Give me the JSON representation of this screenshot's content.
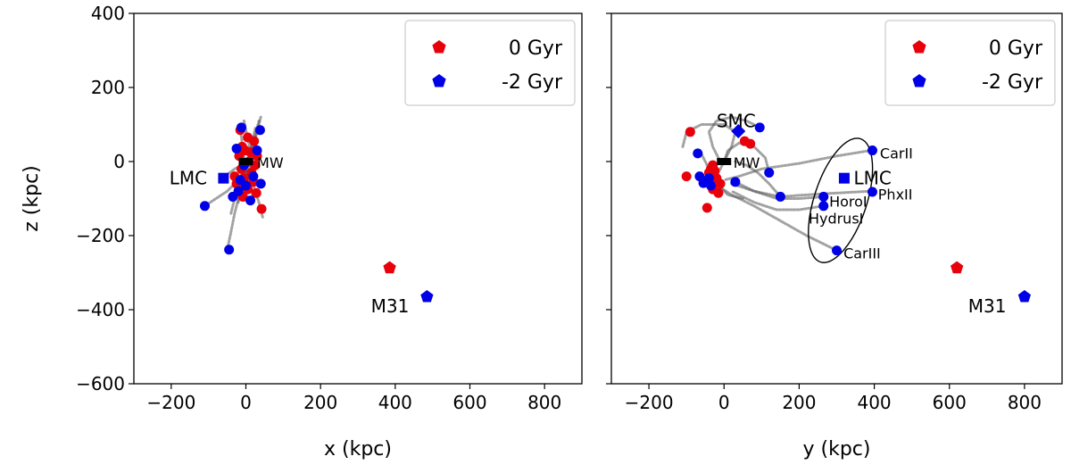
{
  "chart_data": [
    {
      "type": "scatter",
      "xlabel": "x (kpc)",
      "ylabel": "z (kpc)",
      "xlim": [
        -300,
        900
      ],
      "ylim": [
        -600,
        400
      ],
      "xticks": [
        -200,
        0,
        200,
        400,
        600,
        800
      ],
      "yticks": [
        -600,
        -400,
        -200,
        0,
        200,
        400
      ],
      "xtick_labels": [
        "−200",
        "0",
        "200",
        "400",
        "600",
        "800"
      ],
      "ytick_labels": [
        "−600",
        "−400",
        "−200",
        "0",
        "200",
        "400"
      ],
      "legend": {
        "position": "top-right",
        "entries": [
          {
            "label": "0 Gyr",
            "color": "#e8000b",
            "marker": "pentagon"
          },
          {
            "label": "-2 Gyr",
            "color": "#0000e6",
            "marker": "pentagon"
          }
        ]
      },
      "series": [
        {
          "name": "orbits",
          "color": "#555555",
          "style": "dotted-line",
          "paths": [
            [
              [
                -5,
                110
              ],
              [
                5,
                60
              ],
              [
                15,
                20
              ],
              [
                10,
                -20
              ],
              [
                0,
                -60
              ]
            ],
            [
              [
                35,
                110
              ],
              [
                25,
                70
              ],
              [
                20,
                30
              ],
              [
                15,
                -10
              ],
              [
                10,
                -50
              ]
            ],
            [
              [
                -15,
                90
              ],
              [
                -10,
                50
              ],
              [
                -5,
                10
              ],
              [
                0,
                -30
              ],
              [
                5,
                -80
              ]
            ],
            [
              [
                25,
                90
              ],
              [
                15,
                40
              ],
              [
                5,
                0
              ],
              [
                -5,
                -40
              ],
              [
                -15,
                -90
              ]
            ],
            [
              [
                20,
                60
              ],
              [
                10,
                20
              ],
              [
                0,
                -20
              ],
              [
                -10,
                -60
              ],
              [
                -20,
                -110
              ]
            ],
            [
              [
                -20,
                40
              ],
              [
                -10,
                10
              ],
              [
                0,
                -20
              ],
              [
                10,
                -60
              ],
              [
                20,
                -100
              ]
            ],
            [
              [
                -50,
                -238
              ],
              [
                -40,
                -190
              ],
              [
                -30,
                -140
              ],
              [
                -20,
                -100
              ],
              [
                -10,
                -60
              ]
            ],
            [
              [
                -110,
                -120
              ],
              [
                -80,
                -100
              ],
              [
                -50,
                -80
              ],
              [
                -30,
                -60
              ],
              [
                -10,
                -40
              ]
            ],
            [
              [
                -70,
                -40
              ],
              [
                -50,
                -35
              ],
              [
                -30,
                -20
              ],
              [
                -10,
                -10
              ],
              [
                0,
                0
              ]
            ],
            [
              [
                45,
                -150
              ],
              [
                35,
                -110
              ],
              [
                25,
                -80
              ],
              [
                15,
                -50
              ],
              [
                5,
                -20
              ]
            ],
            [
              [
                -40,
                -140
              ],
              [
                -30,
                -100
              ],
              [
                -20,
                -60
              ],
              [
                -10,
                -30
              ],
              [
                0,
                0
              ]
            ],
            [
              [
                40,
                120
              ],
              [
                30,
                80
              ],
              [
                20,
                40
              ],
              [
                10,
                10
              ],
              [
                0,
                -20
              ]
            ]
          ]
        },
        {
          "name": "0 Gyr satellites",
          "color": "#e8000b",
          "marker": "circle",
          "points": [
            [
              -15,
              85
            ],
            [
              5,
              65
            ],
            [
              22,
              55
            ],
            [
              -10,
              40
            ],
            [
              12,
              25
            ],
            [
              -18,
              15
            ],
            [
              8,
              0
            ],
            [
              25,
              -10
            ],
            [
              -12,
              -20
            ],
            [
              15,
              -30
            ],
            [
              -5,
              -45
            ],
            [
              20,
              -55
            ],
            [
              -25,
              -60
            ],
            [
              5,
              -75
            ],
            [
              28,
              -85
            ],
            [
              -8,
              -95
            ],
            [
              42,
              -128
            ],
            [
              -2,
              30
            ],
            [
              30,
              15
            ],
            [
              -30,
              -40
            ]
          ]
        },
        {
          "name": "-2 Gyr satellites",
          "color": "#0000e6",
          "marker": "circle",
          "points": [
            [
              -12,
              92
            ],
            [
              38,
              85
            ],
            [
              -25,
              35
            ],
            [
              30,
              30
            ],
            [
              -5,
              -10
            ],
            [
              20,
              -40
            ],
            [
              -15,
              -50
            ],
            [
              40,
              -60
            ],
            [
              -35,
              -95
            ],
            [
              12,
              -105
            ],
            [
              -110,
              -120
            ],
            [
              -45,
              -238
            ],
            [
              0,
              -65
            ],
            [
              -20,
              -80
            ]
          ]
        },
        {
          "name": "MW",
          "color": "#000000",
          "marker": "rectangle",
          "points": [
            [
              0,
              0
            ]
          ]
        },
        {
          "name": "LMC",
          "color": "#0000e6",
          "marker": "square",
          "points": [
            [
              -60,
              -45
            ]
          ]
        },
        {
          "name": "M31",
          "color": "#e8000b",
          "marker": "pentagon",
          "points": [
            [
              385,
              -287
            ]
          ]
        },
        {
          "name": "M31 -2 Gyr",
          "color": "#0000e6",
          "marker": "pentagon",
          "points": [
            [
              485,
              -365
            ]
          ]
        }
      ],
      "annotations": [
        {
          "text": "MW",
          "x": 30,
          "y": 0
        },
        {
          "text": "LMC",
          "x": -205,
          "y": -45
        },
        {
          "text": "M31",
          "x": 335,
          "y": -390
        }
      ]
    },
    {
      "type": "scatter",
      "xlabel": "y (kpc)",
      "ylabel": "",
      "xlim": [
        -300,
        900
      ],
      "ylim": [
        -600,
        400
      ],
      "xticks": [
        -200,
        0,
        200,
        400,
        600,
        800
      ],
      "yticks": [
        -600,
        -400,
        -200,
        0,
        200,
        400
      ],
      "xtick_labels": [
        "−200",
        "0",
        "200",
        "400",
        "600",
        "800"
      ],
      "legend": {
        "position": "top-right",
        "entries": [
          {
            "label": "0 Gyr",
            "color": "#e8000b",
            "marker": "pentagon"
          },
          {
            "label": "-2 Gyr",
            "color": "#0000e6",
            "marker": "pentagon"
          }
        ]
      },
      "series": [
        {
          "name": "orbits",
          "color": "#555555",
          "style": "dotted-line",
          "paths": [
            [
              [
                -110,
                40
              ],
              [
                -100,
                80
              ],
              [
                -60,
                100
              ],
              [
                0,
                100
              ],
              [
                30,
                80
              ],
              [
                20,
                40
              ],
              [
                0,
                0
              ],
              [
                -20,
                -40
              ]
            ],
            [
              [
                390,
                30
              ],
              [
                300,
                15
              ],
              [
                200,
                -5
              ],
              [
                100,
                -20
              ],
              [
                40,
                -40
              ],
              [
                0,
                -50
              ]
            ],
            [
              [
                390,
                -80
              ],
              [
                300,
                -85
              ],
              [
                220,
                -90
              ],
              [
                150,
                -95
              ],
              [
                80,
                -80
              ],
              [
                20,
                -60
              ]
            ],
            [
              [
                300,
                -240
              ],
              [
                220,
                -200
              ],
              [
                150,
                -160
              ],
              [
                80,
                -120
              ],
              [
                20,
                -90
              ],
              [
                -10,
                -70
              ]
            ],
            [
              [
                265,
                -120
              ],
              [
                200,
                -130
              ],
              [
                140,
                -130
              ],
              [
                80,
                -110
              ],
              [
                20,
                -80
              ]
            ],
            [
              [
                265,
                -95
              ],
              [
                200,
                -100
              ],
              [
                140,
                -100
              ],
              [
                80,
                -80
              ],
              [
                20,
                -50
              ]
            ],
            [
              [
                95,
                92
              ],
              [
                60,
                110
              ],
              [
                20,
                120
              ],
              [
                -20,
                110
              ],
              [
                -40,
                80
              ],
              [
                -30,
                40
              ],
              [
                -10,
                0
              ]
            ],
            [
              [
                120,
                -30
              ],
              [
                110,
                10
              ],
              [
                80,
                40
              ],
              [
                40,
                50
              ],
              [
                10,
                30
              ],
              [
                0,
                0
              ]
            ],
            [
              [
                150,
                -95
              ],
              [
                120,
                -60
              ],
              [
                90,
                -30
              ],
              [
                60,
                -10
              ],
              [
                30,
                0
              ]
            ],
            [
              [
                -60,
                20
              ],
              [
                -40,
                -20
              ],
              [
                -20,
                -60
              ],
              [
                10,
                -90
              ],
              [
                50,
                -100
              ]
            ]
          ]
        },
        {
          "name": "0 Gyr satellites",
          "color": "#e8000b",
          "marker": "circle",
          "points": [
            [
              -90,
              80
            ],
            [
              55,
              55
            ],
            [
              70,
              48
            ],
            [
              -100,
              -40
            ],
            [
              -30,
              -10
            ],
            [
              -25,
              -25
            ],
            [
              -40,
              -30
            ],
            [
              -20,
              -45
            ],
            [
              -50,
              -55
            ],
            [
              -30,
              -75
            ],
            [
              -15,
              -85
            ],
            [
              -45,
              -125
            ],
            [
              -35,
              -20
            ],
            [
              -10,
              -60
            ]
          ]
        },
        {
          "name": "-2 Gyr satellites",
          "color": "#0000e6",
          "marker": "circle",
          "points": [
            [
              95,
              92
            ],
            [
              -70,
              22
            ],
            [
              -65,
              -40
            ],
            [
              -55,
              -58
            ],
            [
              -35,
              -65
            ],
            [
              30,
              -55
            ],
            [
              120,
              -30
            ],
            [
              150,
              -95
            ],
            [
              265,
              -95
            ],
            [
              265,
              -120
            ],
            [
              395,
              30
            ],
            [
              395,
              -82
            ],
            [
              300,
              -240
            ],
            [
              -40,
              -45
            ]
          ]
        },
        {
          "name": "MW",
          "color": "#000000",
          "marker": "rectangle",
          "points": [
            [
              0,
              0
            ]
          ]
        },
        {
          "name": "SMC",
          "color": "#0000e6",
          "marker": "diamond",
          "points": [
            [
              38,
              82
            ]
          ]
        },
        {
          "name": "LMC",
          "color": "#0000e6",
          "marker": "square",
          "points": [
            [
              320,
              -45
            ]
          ]
        },
        {
          "name": "M31",
          "color": "#e8000b",
          "marker": "pentagon",
          "points": [
            [
              620,
              -287
            ]
          ]
        },
        {
          "name": "M31 -2 Gyr",
          "color": "#0000e6",
          "marker": "pentagon",
          "points": [
            [
              800,
              -365
            ]
          ]
        }
      ],
      "ellipse": {
        "cx": 310,
        "cy": -105,
        "rx": 70,
        "ry": 175,
        "rotation_deg": 18
      },
      "annotations": [
        {
          "text": "SMC",
          "x": -20,
          "y": 110
        },
        {
          "text": "MW",
          "x": 25,
          "y": 0
        },
        {
          "text": "LMC",
          "x": 345,
          "y": -45
        },
        {
          "text": "CarII",
          "x": 415,
          "y": 25
        },
        {
          "text": "HoroI",
          "x": 280,
          "y": -105
        },
        {
          "text": "PhxII",
          "x": 410,
          "y": -85
        },
        {
          "text": "HydrusI",
          "x": 225,
          "y": -150
        },
        {
          "text": "CarIII",
          "x": 318,
          "y": -245
        },
        {
          "text": "M31",
          "x": 650,
          "y": -390
        }
      ]
    }
  ]
}
